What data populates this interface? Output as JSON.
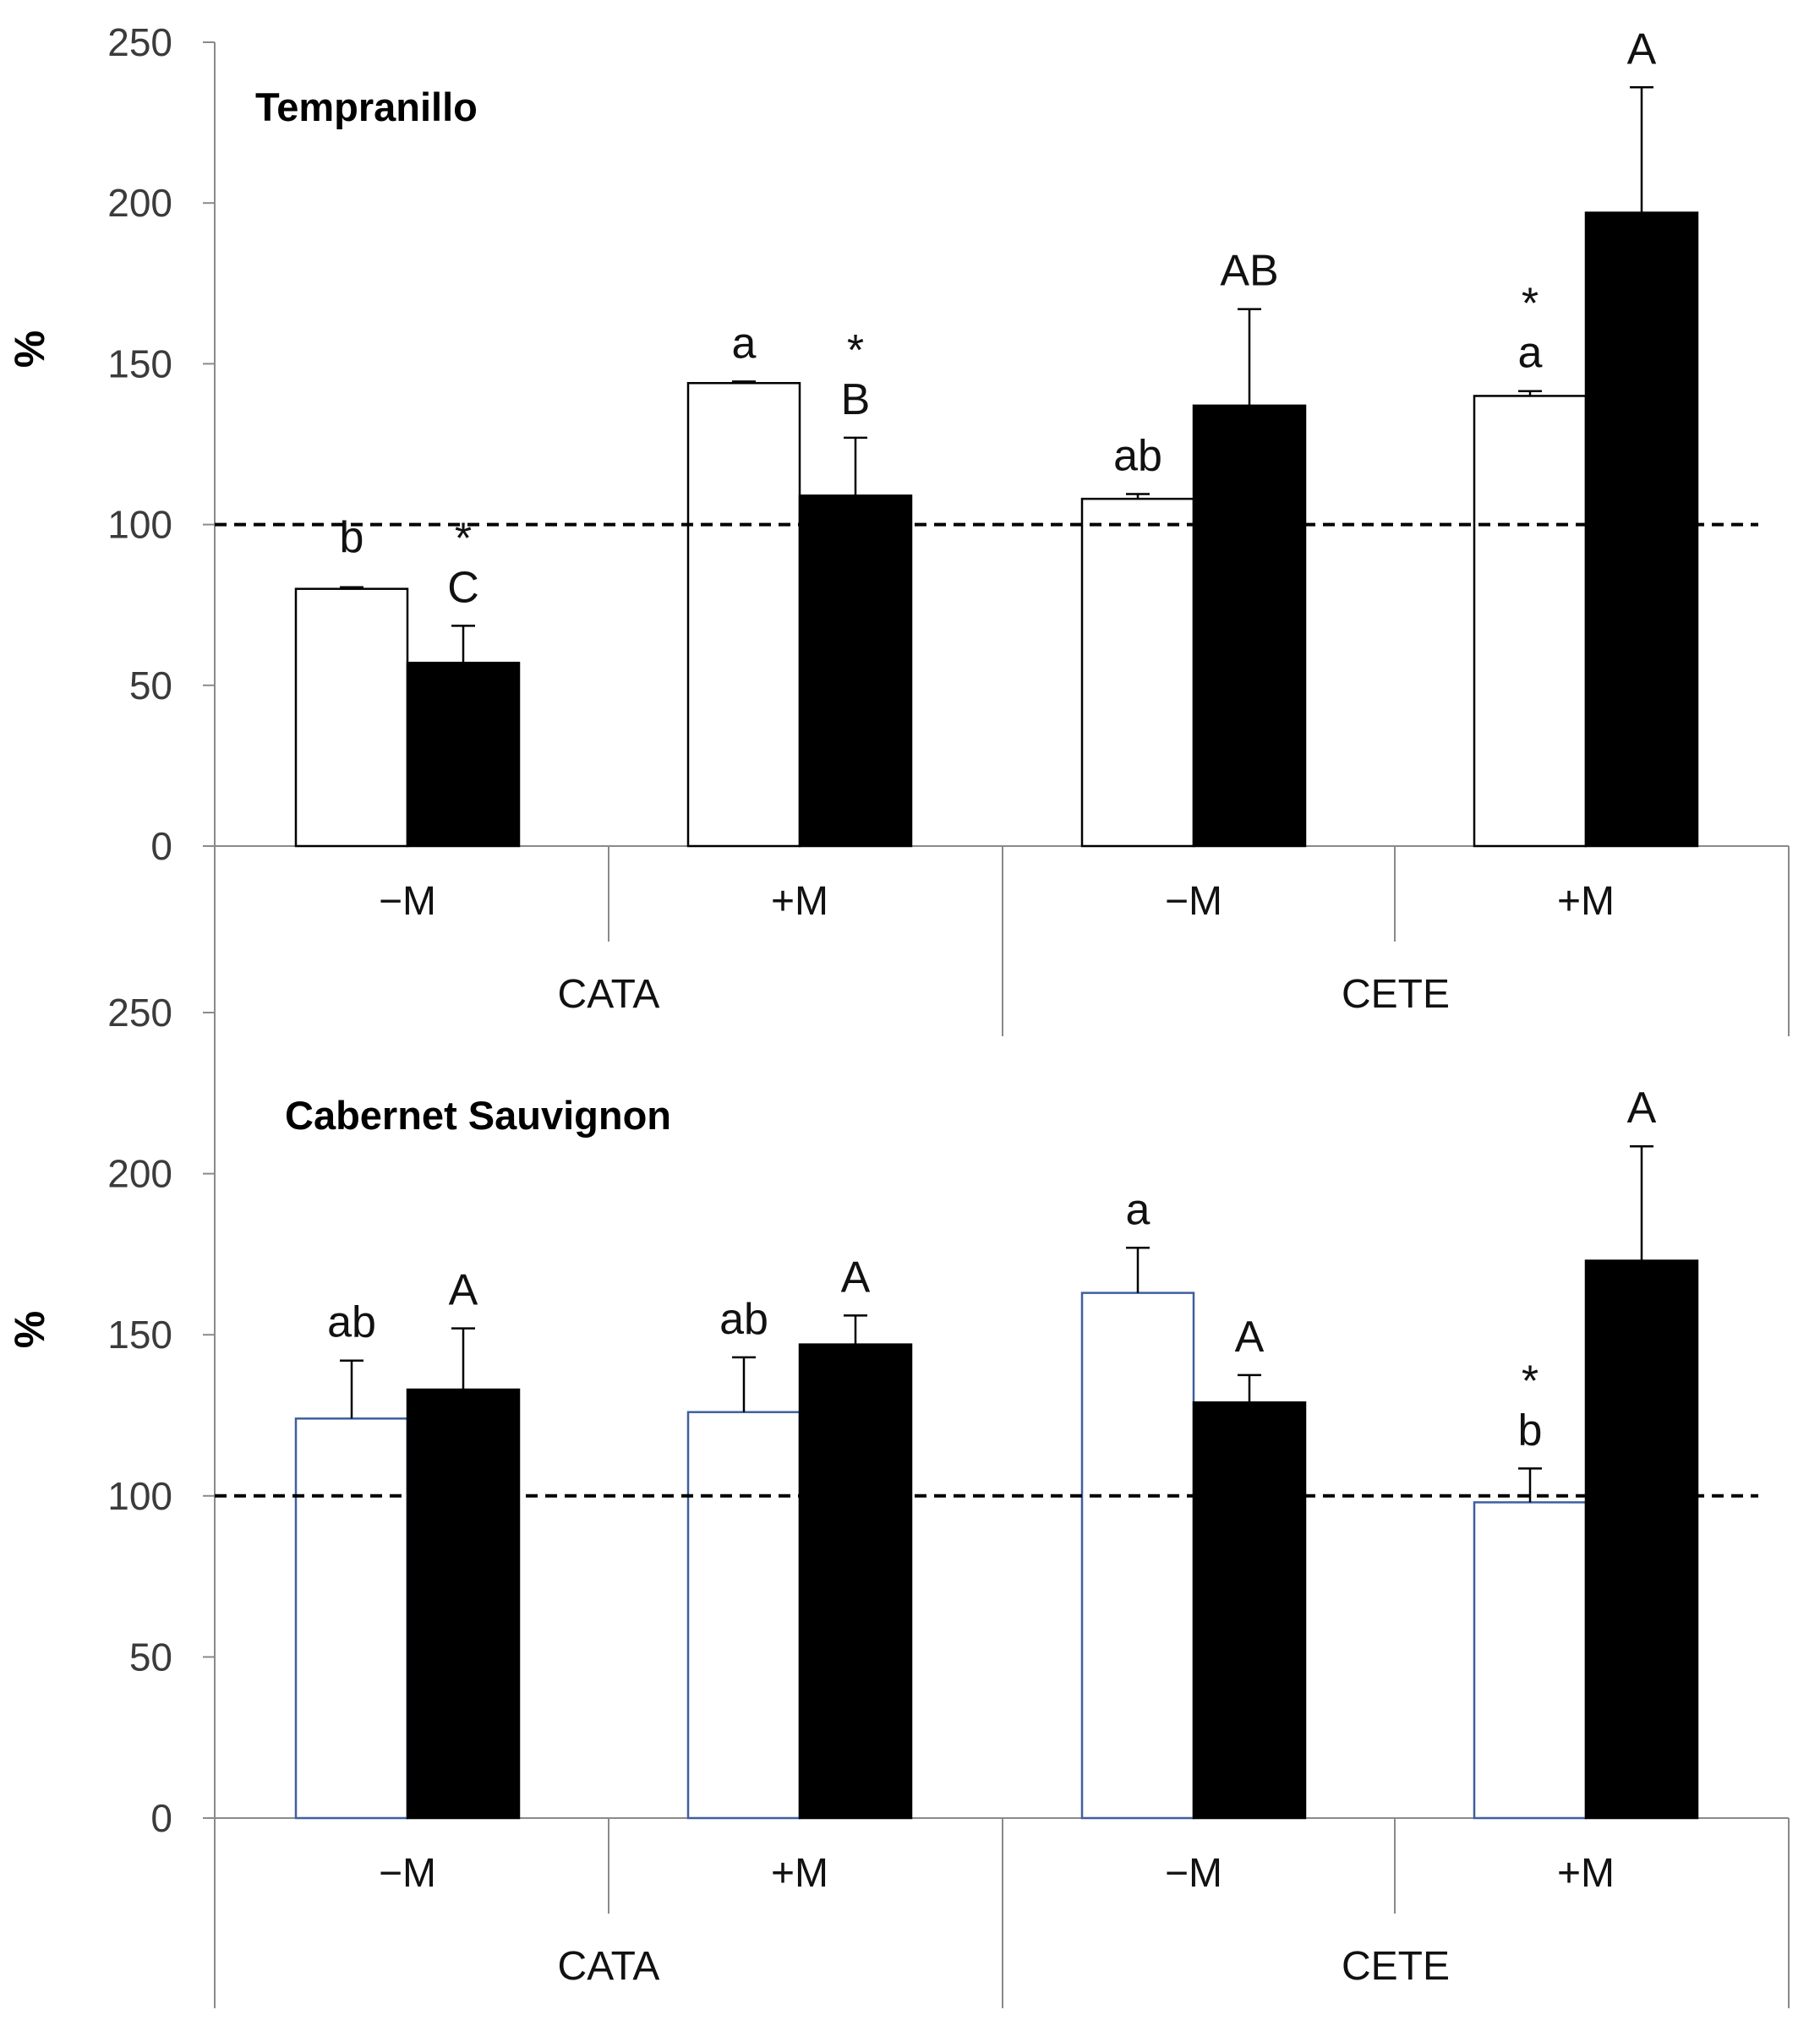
{
  "chart_data": [
    {
      "type": "bar",
      "title": "Tempranillo",
      "ylabel": "%",
      "ylim": [
        0,
        250
      ],
      "yticks": [
        "0",
        "50",
        "100",
        "150",
        "200",
        "250"
      ],
      "reference_line": 100,
      "groups": [
        "CATA",
        "CETE"
      ],
      "categories": [
        "−M",
        "+M",
        "−M",
        "+M"
      ],
      "series": [
        {
          "name": "white",
          "values": [
            80,
            144,
            108,
            140
          ],
          "errors": [
            0.5,
            0.5,
            1.5,
            1.5
          ],
          "labels": [
            "b",
            "a",
            "ab",
            "a"
          ],
          "stars": [
            "",
            "",
            "",
            "*"
          ]
        },
        {
          "name": "black",
          "values": [
            57,
            109,
            137,
            197
          ],
          "errors": [
            11.5,
            18,
            30,
            39
          ],
          "labels": [
            "C",
            "B",
            "AB",
            "A"
          ],
          "stars": [
            "*",
            "*",
            "",
            ""
          ]
        }
      ]
    },
    {
      "type": "bar",
      "title": "Cabernet Sauvignon",
      "ylabel": "%",
      "ylim": [
        0,
        250
      ],
      "yticks": [
        "0",
        "50",
        "100",
        "150",
        "200",
        "250"
      ],
      "reference_line": 100,
      "groups": [
        "CATA",
        "CETE"
      ],
      "categories": [
        "−M",
        "+M",
        "−M",
        "+M"
      ],
      "series": [
        {
          "name": "white",
          "values": [
            124,
            126,
            163,
            98
          ],
          "errors": [
            18,
            17,
            14,
            10.5
          ],
          "labels": [
            "ab",
            "ab",
            "a",
            "b"
          ],
          "stars": [
            "",
            "",
            "",
            "*"
          ]
        },
        {
          "name": "black",
          "values": [
            133,
            147,
            129,
            173
          ],
          "errors": [
            19,
            9,
            8.5,
            35.5
          ],
          "labels": [
            "A",
            "A",
            "A",
            "A"
          ],
          "stars": [
            "",
            "",
            "",
            ""
          ]
        }
      ]
    }
  ]
}
